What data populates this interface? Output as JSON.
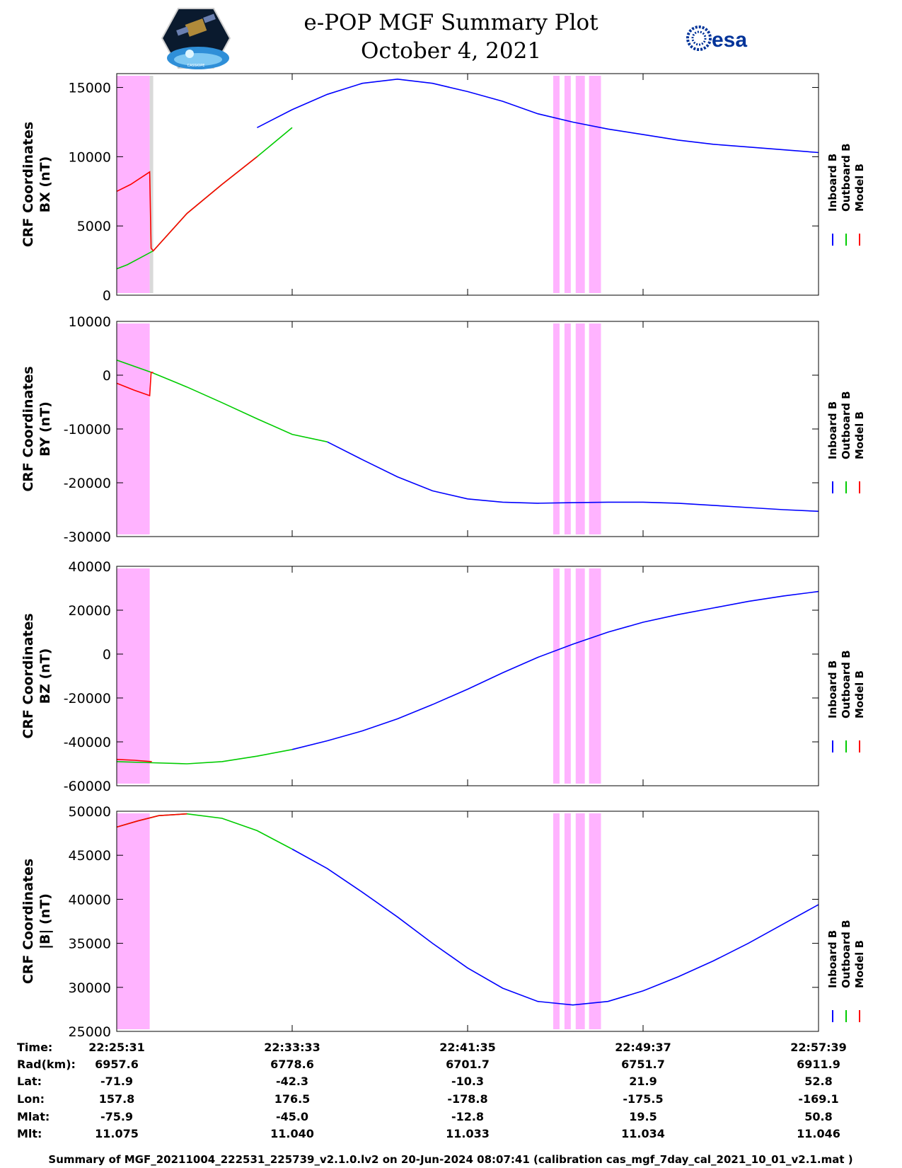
{
  "header": {
    "title_line1": "e-POP MGF Summary Plot",
    "title_line2": "October 4, 2021",
    "right_logo_text": "esa",
    "left_logo_caption": "CASSIOPE"
  },
  "colors": {
    "inboard": "#0000ff",
    "outboard": "#00cc00",
    "model": "#ff0000",
    "shade_magenta": "#ffb3ff",
    "shade_gray": "#d9d9d9"
  },
  "chart_data": [
    {
      "type": "line",
      "ylabel_line1": "CRF Coordinates",
      "ylabel_line2": "BX (nT)",
      "ylim": [
        0,
        16000
      ],
      "yticks": [
        0,
        5000,
        10000,
        15000
      ],
      "legend": [
        "Inboard B",
        "Outboard B",
        "Model B"
      ],
      "series": [
        {
          "name": "Inboard B",
          "x": [
            20.0,
            25.0,
            30.0,
            35.0,
            40.0,
            45.0,
            50.0,
            55.0,
            60.0,
            65.0,
            70.0,
            75.0,
            80.0,
            85.0,
            90.0,
            95.0,
            100.0
          ],
          "y": [
            12100,
            13400,
            14500,
            15300,
            15600,
            15300,
            14700,
            14000,
            13100,
            12500,
            12000,
            11600,
            11200,
            10900,
            10700,
            10500,
            10300
          ]
        },
        {
          "name": "Outboard B",
          "x": [
            0.0,
            1.5,
            3.0,
            5.2,
            10.0,
            15.0,
            20.0,
            25.0
          ],
          "y": [
            1900,
            2200,
            2600,
            3200,
            5900,
            8000,
            10000,
            12100
          ]
        },
        {
          "name": "Model B",
          "x": [
            0.0,
            2.0,
            4.7,
            4.9,
            5.2,
            10.0,
            15.0,
            20.0
          ],
          "y": [
            7500,
            8000,
            8900,
            3400,
            3200,
            5900,
            8000,
            10000
          ]
        }
      ]
    },
    {
      "type": "line",
      "ylabel_line1": "CRF Coordinates",
      "ylabel_line2": "BY (nT)",
      "ylim": [
        -30000,
        10000
      ],
      "yticks": [
        -30000,
        -20000,
        -10000,
        0,
        10000
      ],
      "legend": [
        "Inboard B",
        "Outboard B",
        "Model B"
      ],
      "series": [
        {
          "name": "Inboard B",
          "x": [
            30.0,
            35.0,
            40.0,
            45.0,
            50.0,
            55.0,
            60.0,
            65.0,
            70.0,
            75.0,
            80.0,
            85.0,
            90.0,
            95.0,
            100.0
          ],
          "y": [
            -12400,
            -15700,
            -18900,
            -21500,
            -23000,
            -23600,
            -23800,
            -23700,
            -23600,
            -23600,
            -23800,
            -24200,
            -24600,
            -25000,
            -25300
          ]
        },
        {
          "name": "Outboard B",
          "x": [
            0.0,
            5.0,
            10.0,
            15.0,
            20.0,
            25.0,
            30.0
          ],
          "y": [
            2800,
            500,
            -2200,
            -5100,
            -8100,
            -11000,
            -12400
          ]
        },
        {
          "name": "Model B",
          "x": [
            0.0,
            2.5,
            4.7,
            4.9,
            5.2
          ],
          "y": [
            -1500,
            -2800,
            -3800,
            500,
            500
          ]
        }
      ]
    },
    {
      "type": "line",
      "ylabel_line1": "CRF Coordinates",
      "ylabel_line2": "BZ (nT)",
      "ylim": [
        -60000,
        40000
      ],
      "yticks": [
        -60000,
        -40000,
        -20000,
        0,
        20000,
        40000
      ],
      "legend": [
        "Inboard B",
        "Outboard B",
        "Model B"
      ],
      "series": [
        {
          "name": "Inboard B",
          "x": [
            25.0,
            30.0,
            35.0,
            40.0,
            45.0,
            50.0,
            55.0,
            60.0,
            65.0,
            70.0,
            75.0,
            80.0,
            85.0,
            90.0,
            95.0,
            100.0
          ],
          "y": [
            -43500,
            -39500,
            -35000,
            -29500,
            -23000,
            -16000,
            -8500,
            -1500,
            4500,
            10000,
            14500,
            18000,
            21000,
            24000,
            26500,
            28500
          ]
        },
        {
          "name": "Outboard B",
          "x": [
            0.0,
            5.0,
            10.0,
            15.0,
            20.0,
            25.0
          ],
          "y": [
            -49000,
            -49500,
            -50000,
            -49000,
            -46500,
            -43500
          ]
        },
        {
          "name": "Model B",
          "x": [
            0.0,
            2.5,
            5.0
          ],
          "y": [
            -48000,
            -48400,
            -49000
          ]
        }
      ]
    },
    {
      "type": "line",
      "ylabel_line1": "CRF Coordinates",
      "ylabel_line2": "|B| (nT)",
      "ylim": [
        25000,
        50000
      ],
      "yticks": [
        25000,
        30000,
        35000,
        40000,
        45000,
        50000
      ],
      "legend": [
        "Inboard B",
        "Outboard B",
        "Model B"
      ],
      "series": [
        {
          "name": "Inboard B",
          "x": [
            25.0,
            30.0,
            35.0,
            40.0,
            45.0,
            50.0,
            55.0,
            60.0,
            65.0,
            70.0,
            75.0,
            80.0,
            85.0,
            90.0,
            95.0,
            100.0
          ],
          "y": [
            45700,
            43500,
            40800,
            38000,
            35000,
            32200,
            29900,
            28400,
            28000,
            28400,
            29600,
            31200,
            33000,
            35000,
            37200,
            39400
          ]
        },
        {
          "name": "Outboard B",
          "x": [
            0.0,
            3.0,
            6.0,
            10.0,
            15.0,
            20.0,
            25.0
          ],
          "y": [
            48200,
            48900,
            49500,
            49700,
            49200,
            47800,
            45700
          ]
        },
        {
          "name": "Model B",
          "x": [
            0.0,
            3.0,
            6.0,
            10.0
          ],
          "y": [
            48200,
            48900,
            49500,
            49700
          ]
        }
      ]
    }
  ],
  "shading": {
    "magenta_spans": [
      [
        0.0,
        4.7
      ],
      [
        62.2,
        63.1
      ],
      [
        63.8,
        64.7
      ],
      [
        65.4,
        66.7
      ],
      [
        67.3,
        69.0
      ]
    ],
    "gray_spans": [
      [
        4.7,
        5.2
      ]
    ]
  },
  "info_table": {
    "row_labels": [
      "Time:",
      "Rad(km):",
      "Lat:",
      "Lon:",
      "Mlat:",
      "Mlt:"
    ],
    "columns": [
      [
        "22:25:31",
        "6957.6",
        "-71.9",
        "157.8",
        "-75.9",
        "11.075"
      ],
      [
        "22:33:33",
        "6778.6",
        "-42.3",
        "176.5",
        "-45.0",
        "11.040"
      ],
      [
        "22:41:35",
        "6701.7",
        "-10.3",
        "-178.8",
        "-12.8",
        "11.033"
      ],
      [
        "22:49:37",
        "6751.7",
        "21.9",
        "-175.5",
        "19.5",
        "11.034"
      ],
      [
        "22:57:39",
        "6911.9",
        "52.8",
        "-169.1",
        "50.8",
        "11.046"
      ]
    ]
  },
  "footer": "Summary of MGF_20211004_222531_225739_v2.1.0.lv2 on 20-Jun-2024 08:07:41 (calibration cas_mgf_7day_cal_2021_10_01_v2.1.mat )"
}
